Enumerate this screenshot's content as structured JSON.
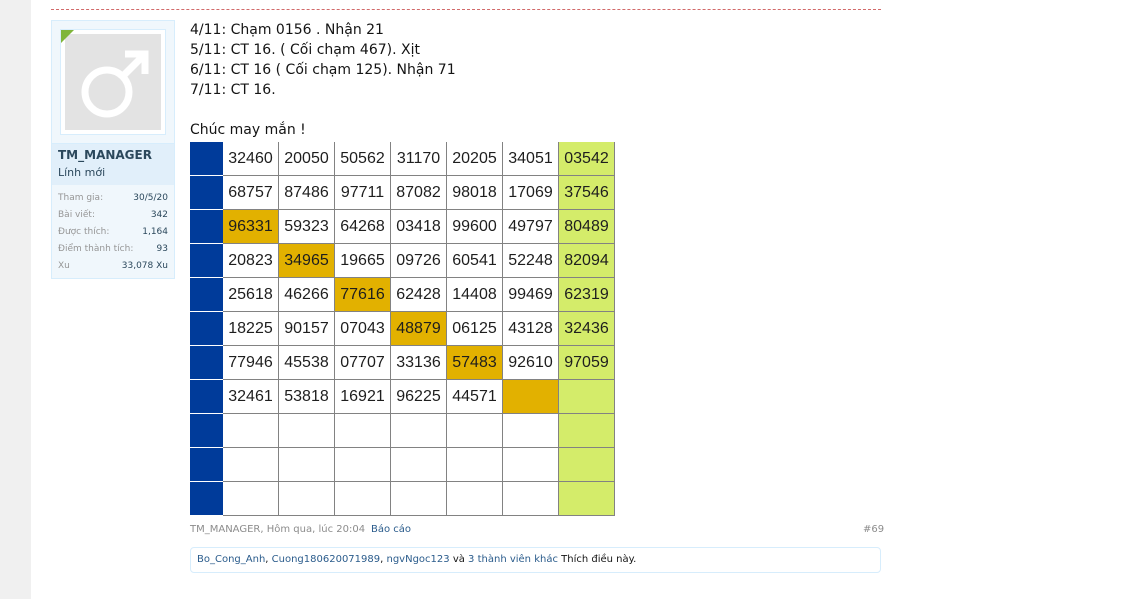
{
  "user": {
    "name": "TM_MANAGER",
    "title": "Lính mới",
    "avatar_icon": "male-symbol-icon",
    "stats": [
      {
        "label": "Tham gia:",
        "value": "30/5/20"
      },
      {
        "label": "Bài viết:",
        "value": "342"
      },
      {
        "label": "Được thích:",
        "value": "1,164"
      },
      {
        "label": "Điểm thành tích:",
        "value": "93"
      },
      {
        "label": "Xu",
        "value": "33,078 Xu"
      }
    ]
  },
  "message": {
    "lines": [
      "4/11: Chạm 0156 . Nhận 21",
      "5/11: CT 16. ( Cối chạm 467). Xịt",
      "6/11: CT 16 ( Cối chạm 125). Nhận 71",
      "7/11: CT 16.",
      "Chúc may mắn !"
    ]
  },
  "table": {
    "partial_top_row": [
      "32460",
      "20050",
      "50562",
      "31170",
      "20205",
      "34051",
      "03542"
    ],
    "rows": [
      [
        "68757",
        "87486",
        "97711",
        "87082",
        "98018",
        "17069",
        "37546"
      ],
      [
        "96331",
        "59323",
        "64268",
        "03418",
        "99600",
        "49797",
        "80489"
      ],
      [
        "20823",
        "34965",
        "19665",
        "09726",
        "60541",
        "52248",
        "82094"
      ],
      [
        "25618",
        "46266",
        "77616",
        "62428",
        "14408",
        "99469",
        "62319"
      ],
      [
        "18225",
        "90157",
        "07043",
        "48879",
        "06125",
        "43128",
        "32436"
      ],
      [
        "77946",
        "45538",
        "07707",
        "33136",
        "57483",
        "92610",
        "97059"
      ],
      [
        "32461",
        "53818",
        "16921",
        "96225",
        "44571",
        "",
        ""
      ],
      [
        "",
        "",
        "",
        "",
        "",
        "",
        ""
      ],
      [
        "",
        "",
        "",
        "",
        "",
        "",
        ""
      ],
      [
        "",
        "",
        "",
        "",
        "",
        "",
        ""
      ]
    ],
    "highlight_col_per_row": [
      -1,
      0,
      1,
      2,
      3,
      4,
      5,
      -1,
      -1,
      -1
    ],
    "colors": {
      "blue": "#003b9a",
      "gold": "#e2b100",
      "green": "#d4ec6a"
    }
  },
  "footer": {
    "meta": "TM_MANAGER, Hôm qua, lúc 20:04",
    "report": "Báo cáo",
    "post_number": "#69"
  },
  "likes": {
    "users": [
      "Bo_Cong_Anh",
      "Cuong180620071989",
      "ngvNgoc123"
    ],
    "and": "và",
    "others": "3 thành viên khác",
    "suffix": "Thích điều này."
  }
}
